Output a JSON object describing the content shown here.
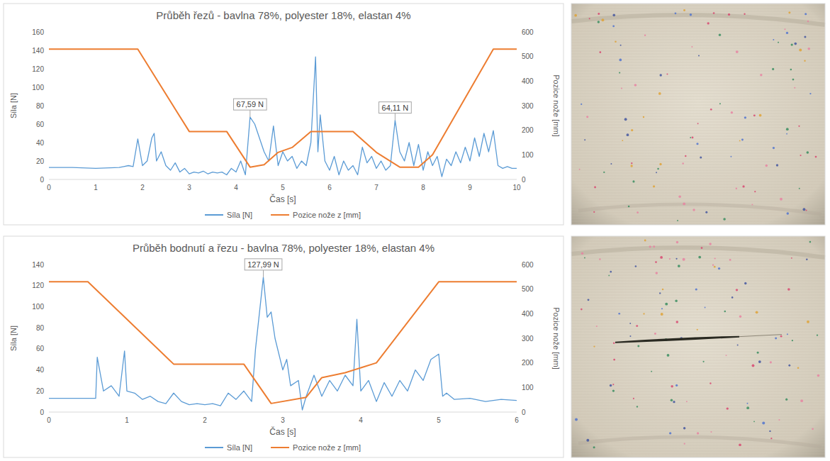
{
  "chart_data": [
    {
      "type": "line",
      "title": "Průběh řezů - bavlna 78%, polyester 18%, elastan 4%",
      "x_label": "Čas [s]",
      "y_label": "Síla [N]",
      "y2_label": "Pozice nože [mm]",
      "xlim": [
        0,
        10
      ],
      "xticks": [
        0,
        1,
        2,
        3,
        4,
        5,
        6,
        7,
        8,
        9,
        10
      ],
      "ylim": [
        0,
        160
      ],
      "yticks": [
        0,
        20,
        40,
        60,
        80,
        100,
        120,
        140,
        160
      ],
      "y2lim": [
        0,
        600
      ],
      "y2ticks": [
        0,
        100,
        200,
        300,
        400,
        500,
        600
      ],
      "grid": false,
      "legend": "bottom",
      "series": [
        {
          "name": "Síla [N]",
          "color": "#5b9bd5",
          "x": [
            0,
            0.5,
            1.0,
            1.5,
            1.6,
            1.7,
            1.8,
            1.9,
            2.0,
            2.1,
            2.2,
            2.25,
            2.3,
            2.4,
            2.5,
            2.6,
            2.7,
            2.8,
            2.9,
            3.0,
            3.1,
            3.2,
            3.3,
            3.4,
            3.5,
            3.6,
            3.7,
            3.8,
            3.9,
            4.0,
            4.1,
            4.2,
            4.3,
            4.4,
            4.5,
            4.6,
            4.7,
            4.8,
            4.9,
            5.0,
            5.1,
            5.2,
            5.3,
            5.4,
            5.5,
            5.6,
            5.7,
            5.75,
            5.8,
            5.9,
            6.0,
            6.1,
            6.2,
            6.3,
            6.4,
            6.5,
            6.6,
            6.7,
            6.8,
            6.9,
            7.0,
            7.1,
            7.2,
            7.3,
            7.4,
            7.5,
            7.6,
            7.7,
            7.8,
            7.9,
            8.0,
            8.1,
            8.2,
            8.3,
            8.4,
            8.5,
            8.6,
            8.7,
            8.8,
            8.9,
            9.0,
            9.1,
            9.2,
            9.3,
            9.4,
            9.5,
            9.6,
            9.7,
            9.8,
            9.9,
            10
          ],
          "values": [
            13,
            13,
            12,
            13,
            14,
            15,
            14,
            44,
            15,
            20,
            45,
            50,
            20,
            30,
            15,
            10,
            18,
            8,
            12,
            6,
            8,
            7,
            9,
            6,
            8,
            7,
            8,
            5,
            12,
            8,
            20,
            5,
            67.59,
            60,
            45,
            30,
            20,
            58,
            15,
            30,
            20,
            25,
            12,
            20,
            15,
            40,
            133,
            30,
            70,
            20,
            10,
            25,
            5,
            20,
            10,
            15,
            5,
            35,
            18,
            25,
            12,
            20,
            10,
            15,
            64.11,
            30,
            20,
            40,
            15,
            38,
            10,
            30,
            15,
            25,
            3,
            22,
            15,
            30,
            18,
            35,
            20,
            45,
            25,
            50,
            30,
            53,
            15,
            12,
            14,
            12,
            12
          ]
        },
        {
          "name": "Pozice nože z [mm]",
          "color": "#ed7d31",
          "axis": "y2",
          "x": [
            0,
            1.9,
            3.0,
            3.8,
            4.3,
            4.6,
            4.9,
            5.2,
            5.6,
            6.5,
            7.0,
            7.5,
            7.9,
            8.2,
            9.5,
            10
          ],
          "values": [
            530,
            530,
            195,
            195,
            50,
            60,
            110,
            130,
            195,
            195,
            110,
            50,
            50,
            100,
            530,
            530
          ]
        }
      ],
      "annotations": [
        {
          "text": "67,59 N",
          "x": 4.3,
          "y": 67.59
        },
        {
          "text": "64,11 N",
          "x": 7.4,
          "y": 64.11
        }
      ]
    },
    {
      "type": "line",
      "title": "Průběh bodnutí a řezu - bavlna 78%, polyester 18%, elastan 4%",
      "x_label": "Čas [s]",
      "y_label": "Síla [N]",
      "y2_label": "Pozice nože [mm]",
      "xlim": [
        0,
        6
      ],
      "xticks": [
        0,
        1,
        2,
        3,
        4,
        5,
        6
      ],
      "ylim": [
        0,
        140
      ],
      "yticks": [
        0,
        20,
        40,
        60,
        80,
        100,
        120,
        140
      ],
      "y2lim": [
        0,
        600
      ],
      "y2ticks": [
        0,
        100,
        200,
        300,
        400,
        500,
        600
      ],
      "grid": false,
      "legend": "bottom",
      "series": [
        {
          "name": "Síla [N]",
          "color": "#5b9bd5",
          "x": [
            0,
            0.3,
            0.6,
            0.62,
            0.7,
            0.8,
            0.9,
            0.97,
            1.0,
            1.1,
            1.2,
            1.3,
            1.4,
            1.5,
            1.6,
            1.7,
            1.8,
            1.9,
            2.0,
            2.1,
            2.2,
            2.3,
            2.4,
            2.5,
            2.6,
            2.65,
            2.75,
            2.8,
            2.85,
            2.9,
            3.0,
            3.05,
            3.1,
            3.2,
            3.25,
            3.3,
            3.4,
            3.5,
            3.6,
            3.7,
            3.8,
            3.9,
            3.95,
            4.0,
            4.1,
            4.2,
            4.3,
            4.4,
            4.5,
            4.6,
            4.7,
            4.8,
            4.9,
            5.0,
            5.05,
            5.1,
            5.2,
            5.4,
            5.6,
            5.8,
            6.0
          ],
          "values": [
            13,
            13,
            13,
            52,
            20,
            25,
            15,
            58,
            20,
            18,
            12,
            15,
            10,
            8,
            18,
            10,
            7,
            8,
            7,
            8,
            6,
            18,
            12,
            20,
            10,
            60,
            127.99,
            90,
            95,
            70,
            40,
            50,
            25,
            30,
            2,
            15,
            35,
            15,
            30,
            20,
            35,
            25,
            88,
            20,
            30,
            10,
            28,
            15,
            30,
            20,
            40,
            30,
            50,
            55,
            15,
            18,
            12,
            13,
            10,
            12,
            11
          ]
        },
        {
          "name": "Pozice nože z [mm]",
          "color": "#ed7d31",
          "axis": "y2",
          "x": [
            0,
            0.5,
            1.6,
            2.5,
            2.85,
            3.3,
            3.5,
            3.8,
            4.2,
            5.0,
            6
          ],
          "values": [
            530,
            530,
            195,
            195,
            35,
            60,
            140,
            160,
            200,
            530,
            530
          ]
        }
      ],
      "annotations": [
        {
          "text": "127,99 N",
          "x": 2.75,
          "y": 127.99
        }
      ]
    }
  ]
}
